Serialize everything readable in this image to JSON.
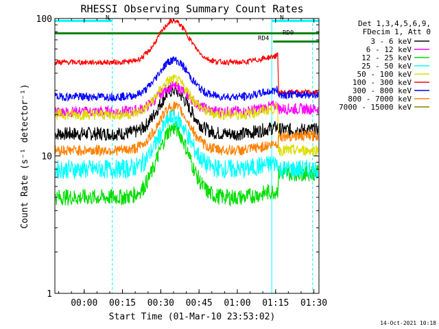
{
  "chart_data": {
    "type": "line",
    "title": "RHESSI Observing Summary Count Rates",
    "xlabel": "Start Time (01-Mar-10 23:53:02)",
    "ylabel": "Count Rate (s⁻¹ detector⁻¹)",
    "y_scale": "log",
    "ylim": [
      1,
      100
    ],
    "xlim_minutes_from_start": [
      -4.5,
      99
    ],
    "x_ticks": [
      {
        "t": 7,
        "label": "00:00"
      },
      {
        "t": 22,
        "label": "00:15"
      },
      {
        "t": 37,
        "label": "00:30"
      },
      {
        "t": 52,
        "label": "00:45"
      },
      {
        "t": 67,
        "label": "01:00"
      },
      {
        "t": 82,
        "label": "01:15"
      },
      {
        "t": 97,
        "label": "01:30"
      }
    ],
    "y_ticks": [
      {
        "v": 1,
        "label": "1"
      },
      {
        "v": 10,
        "label": "10"
      },
      {
        "v": 100,
        "label": "100"
      }
    ],
    "legend_header": [
      "Det 1,3,4,5,6,9,",
      "FDecim 1, Att 0"
    ],
    "legend_placement": "right",
    "series": [
      {
        "name": "3 - 6 keV",
        "color": "#000000",
        "base": 14.5,
        "peak": 30,
        "post": 15.5,
        "noise": 0.05
      },
      {
        "name": "6 - 12 keV",
        "color": "#ff00ff",
        "base": 21,
        "peak": 32,
        "post": 22,
        "noise": 0.04
      },
      {
        "name": "12 - 25 keV",
        "color": "#00dd00",
        "base": 5,
        "peak": 16,
        "post": 7.5,
        "noise": 0.06
      },
      {
        "name": "25 - 50 keV",
        "color": "#00ffff",
        "base": 8,
        "peak": 19,
        "post": 8,
        "noise": 0.07
      },
      {
        "name": "50 - 100 keV",
        "color": "#dddd00",
        "base": 20,
        "peak": 36,
        "post": 11,
        "noise": 0.04
      },
      {
        "name": "100 - 300 keV",
        "color": "#ff0000",
        "base": 48,
        "peak": 96,
        "post": 29,
        "noise": 0.02
      },
      {
        "name": "300 - 800 keV",
        "color": "#0000ff",
        "base": 27,
        "peak": 50,
        "post": 28,
        "noise": 0.03
      },
      {
        "name": "800 - 7000 keV",
        "color": "#ff8000",
        "base": 11,
        "peak": 23,
        "post": 14,
        "noise": 0.04
      },
      {
        "name": "7000 - 15000 keV",
        "color": "#808000",
        "base": null,
        "peak": null,
        "post": null,
        "noise": 0
      }
    ],
    "flags": [
      {
        "label": "N",
        "color": "#00ffff",
        "y": 96,
        "t_start": -4.5,
        "t_end": 18
      },
      {
        "label": "N",
        "color": "#00ffff",
        "y": 96,
        "t_start": 80.5,
        "t_end": 99
      },
      {
        "label": "RD0",
        "color": "#008000",
        "y": 78,
        "t_start": -4.5,
        "t_end": 99
      },
      {
        "label": "RD4",
        "color": "#008000",
        "y": 68,
        "t_start": 81,
        "t_end": 99
      }
    ],
    "vlines": [
      {
        "t": -4.5,
        "style": "solid"
      },
      {
        "t": 18,
        "style": "dashed"
      },
      {
        "t": 80.5,
        "style": "solid"
      },
      {
        "t": 96.5,
        "style": "dashed"
      }
    ],
    "attenuator_change_minute": 83,
    "footer_date": "14-Oct-2021 10:18"
  }
}
